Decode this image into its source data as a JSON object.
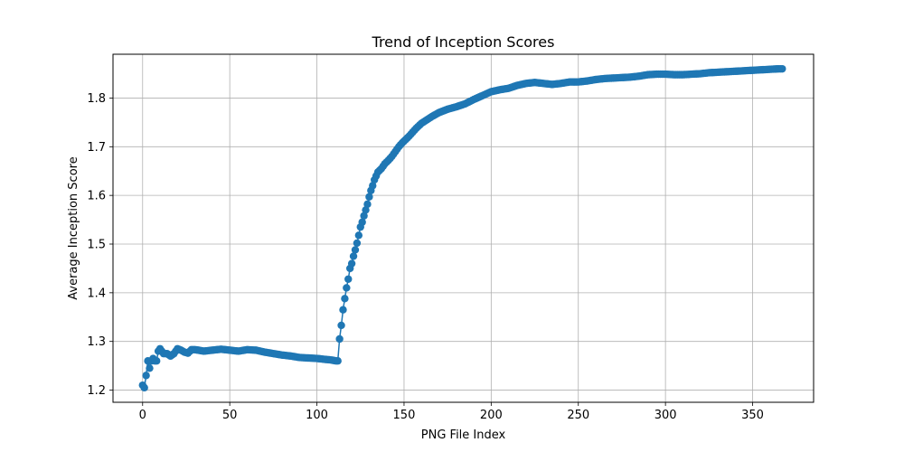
{
  "chart_data": {
    "type": "line",
    "title": "Trend of Inception Scores",
    "xlabel": "PNG File Index",
    "ylabel": "Average Inception Score",
    "xlim": [
      -17,
      385
    ],
    "ylim": [
      1.175,
      1.89
    ],
    "xticks": [
      0,
      50,
      100,
      150,
      200,
      250,
      300,
      350
    ],
    "xtick_labels": [
      "0",
      "50",
      "100",
      "150",
      "200",
      "250",
      "300",
      "350"
    ],
    "yticks": [
      1.2,
      1.3,
      1.4,
      1.5,
      1.6,
      1.7,
      1.8
    ],
    "ytick_labels": [
      "1.2",
      "1.3",
      "1.4",
      "1.5",
      "1.6",
      "1.7",
      "1.8"
    ],
    "grid": true,
    "marker": "circle",
    "color": "#1f77b4",
    "series": [
      {
        "key_points": [
          [
            0,
            1.21
          ],
          [
            1,
            1.205
          ],
          [
            2,
            1.23
          ],
          [
            3,
            1.26
          ],
          [
            4,
            1.245
          ],
          [
            5,
            1.26
          ],
          [
            6,
            1.265
          ],
          [
            7,
            1.26
          ],
          [
            8,
            1.26
          ],
          [
            9,
            1.28
          ],
          [
            10,
            1.285
          ],
          [
            12,
            1.275
          ],
          [
            14,
            1.275
          ],
          [
            16,
            1.27
          ],
          [
            18,
            1.275
          ],
          [
            20,
            1.285
          ],
          [
            22,
            1.282
          ],
          [
            24,
            1.278
          ],
          [
            26,
            1.276
          ],
          [
            28,
            1.283
          ],
          [
            30,
            1.283
          ],
          [
            32,
            1.282
          ],
          [
            35,
            1.28
          ],
          [
            40,
            1.282
          ],
          [
            45,
            1.284
          ],
          [
            50,
            1.282
          ],
          [
            55,
            1.28
          ],
          [
            60,
            1.283
          ],
          [
            65,
            1.282
          ],
          [
            70,
            1.278
          ],
          [
            75,
            1.275
          ],
          [
            80,
            1.272
          ],
          [
            85,
            1.27
          ],
          [
            90,
            1.267
          ],
          [
            95,
            1.266
          ],
          [
            100,
            1.265
          ],
          [
            105,
            1.263
          ],
          [
            108,
            1.262
          ],
          [
            111,
            1.26
          ],
          [
            112,
            1.26
          ],
          [
            113,
            1.305
          ],
          [
            114,
            1.333
          ],
          [
            115,
            1.365
          ],
          [
            116,
            1.388
          ],
          [
            117,
            1.41
          ],
          [
            118,
            1.428
          ],
          [
            119,
            1.45
          ],
          [
            120,
            1.46
          ],
          [
            121,
            1.475
          ],
          [
            122,
            1.488
          ],
          [
            123,
            1.502
          ],
          [
            124,
            1.518
          ],
          [
            125,
            1.535
          ],
          [
            126,
            1.545
          ],
          [
            127,
            1.558
          ],
          [
            128,
            1.57
          ],
          [
            129,
            1.582
          ],
          [
            130,
            1.597
          ],
          [
            131,
            1.61
          ],
          [
            132,
            1.62
          ],
          [
            133,
            1.632
          ],
          [
            134,
            1.64
          ],
          [
            135,
            1.648
          ],
          [
            137,
            1.655
          ],
          [
            139,
            1.665
          ],
          [
            141,
            1.672
          ],
          [
            143,
            1.68
          ],
          [
            145,
            1.69
          ],
          [
            147,
            1.7
          ],
          [
            149,
            1.708
          ],
          [
            151,
            1.715
          ],
          [
            153,
            1.722
          ],
          [
            155,
            1.73
          ],
          [
            157,
            1.738
          ],
          [
            160,
            1.748
          ],
          [
            163,
            1.755
          ],
          [
            166,
            1.762
          ],
          [
            170,
            1.77
          ],
          [
            175,
            1.777
          ],
          [
            180,
            1.782
          ],
          [
            185,
            1.788
          ],
          [
            190,
            1.797
          ],
          [
            195,
            1.805
          ],
          [
            200,
            1.813
          ],
          [
            205,
            1.817
          ],
          [
            210,
            1.82
          ],
          [
            215,
            1.826
          ],
          [
            220,
            1.83
          ],
          [
            225,
            1.832
          ],
          [
            230,
            1.83
          ],
          [
            235,
            1.828
          ],
          [
            240,
            1.83
          ],
          [
            245,
            1.833
          ],
          [
            250,
            1.833
          ],
          [
            255,
            1.835
          ],
          [
            260,
            1.838
          ],
          [
            265,
            1.84
          ],
          [
            270,
            1.841
          ],
          [
            275,
            1.842
          ],
          [
            280,
            1.843
          ],
          [
            285,
            1.845
          ],
          [
            290,
            1.848
          ],
          [
            295,
            1.849
          ],
          [
            300,
            1.849
          ],
          [
            305,
            1.848
          ],
          [
            310,
            1.848
          ],
          [
            315,
            1.849
          ],
          [
            320,
            1.85
          ],
          [
            325,
            1.852
          ],
          [
            330,
            1.853
          ],
          [
            335,
            1.854
          ],
          [
            340,
            1.855
          ],
          [
            345,
            1.856
          ],
          [
            350,
            1.857
          ],
          [
            355,
            1.858
          ],
          [
            360,
            1.859
          ],
          [
            365,
            1.86
          ],
          [
            367,
            1.86
          ]
        ]
      }
    ]
  }
}
